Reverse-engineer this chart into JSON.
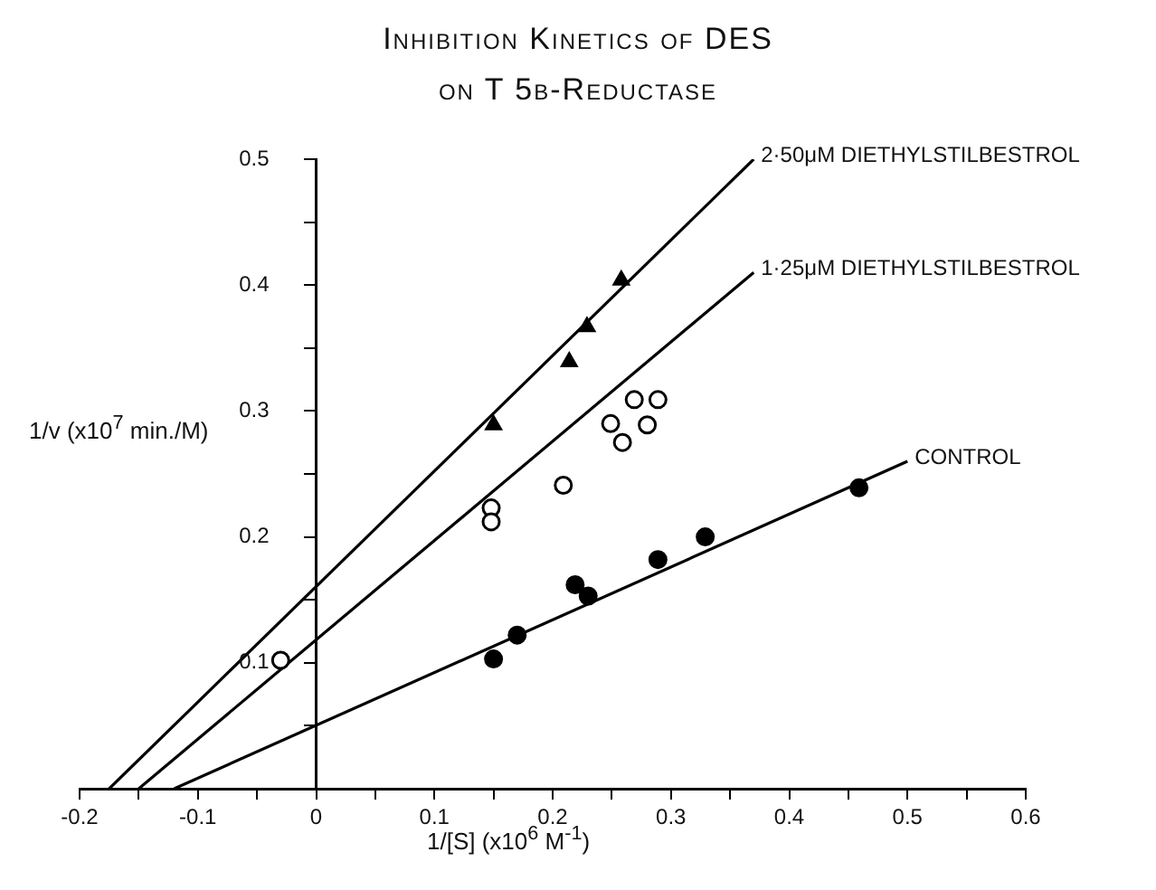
{
  "chart_data": {
    "type": "scatter",
    "title": "Inhibition Kinetics of DES",
    "subtitle": "on T 5β-Reductase",
    "xlabel": "1/[S] (x10$^{6}$ M$^{-1}$)",
    "ylabel": "1/v (x10$^{7}$ min./M)",
    "xlim": [
      -0.2,
      0.6
    ],
    "ylim": [
      0,
      0.5
    ],
    "xticks": [
      -0.2,
      {
        "value": -0.15,
        "label": null
      },
      -0.1,
      {
        "value": -0.05,
        "label": null
      },
      0,
      {
        "value": 0.05,
        "label": null
      },
      0.1,
      {
        "value": 0.15,
        "label": null
      },
      0.2,
      {
        "value": 0.25,
        "label": null
      },
      0.3,
      {
        "value": 0.35,
        "label": null
      },
      0.4,
      {
        "value": 0.45,
        "label": null
      },
      0.5,
      {
        "value": 0.55,
        "label": null
      },
      0.6
    ],
    "yticks": [
      {
        "value": 0.05,
        "label": null
      },
      0.1,
      {
        "value": 0.15,
        "label": null
      },
      0.2,
      {
        "value": 0.25,
        "label": null
      },
      0.3,
      {
        "value": 0.35,
        "label": null
      },
      0.4,
      {
        "value": 0.45,
        "label": null
      },
      0.5
    ],
    "grid": false,
    "legend": false,
    "series": [
      {
        "type": "scatter",
        "marker": "triangle",
        "color": "#000000",
        "x": [
          0.15,
          0.214,
          0.229,
          0.258
        ],
        "values": [
          0.289,
          0.339,
          0.367,
          0.404
        ]
      },
      {
        "type": "scatter",
        "marker": "circle",
        "color": "#ffffff",
        "x": [
          -0.03,
          0.148,
          0.148,
          0.209,
          0.249,
          0.259,
          0.269,
          0.28,
          0.289
        ],
        "values": [
          0.102,
          0.223,
          0.212,
          0.241,
          0.29,
          0.275,
          0.309,
          0.289,
          0.309
        ]
      },
      {
        "type": "scatter",
        "marker": "circle",
        "color": "#000000",
        "x": [
          0.15,
          0.17,
          0.219,
          0.23,
          0.289,
          0.329,
          0.459
        ],
        "values": [
          0.103,
          0.122,
          0.162,
          0.153,
          0.182,
          0.2,
          0.239
        ]
      },
      {
        "type": "line",
        "name": "2·50μM DIETHYLSTILBESTROL",
        "color": "#000000",
        "marker": "none",
        "x": [
          -0.175,
          0.37
        ],
        "values": [
          0,
          0.5
        ]
      },
      {
        "type": "line",
        "name": "1·25μM DIETHYLSTILBESTROL",
        "color": "#000000",
        "marker": "none",
        "x": [
          -0.15,
          0.37
        ],
        "values": [
          0,
          0.41
        ]
      },
      {
        "type": "line",
        "name": "CONTROL",
        "color": "#000000",
        "marker": "none",
        "x": [
          -0.12,
          0.5
        ],
        "values": [
          0,
          0.26
        ]
      }
    ]
  }
}
